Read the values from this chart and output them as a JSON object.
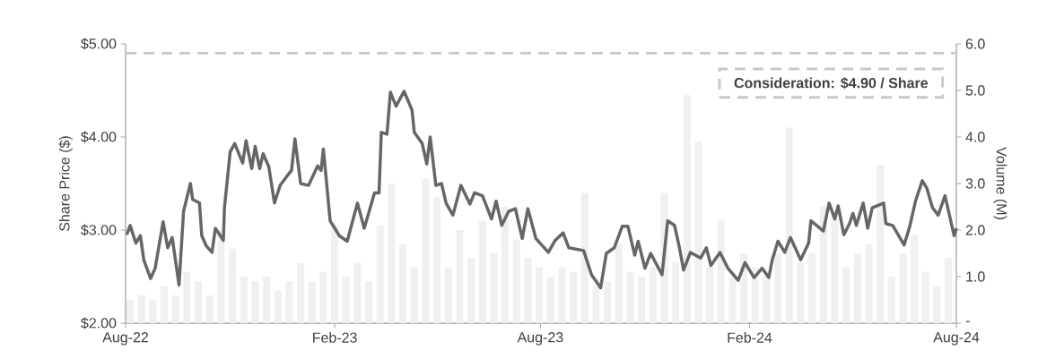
{
  "chart_data": {
    "type": "line",
    "ylabel": "Share Price ($)",
    "y2label": "Volume (M)",
    "xlim": [
      "2022-08-01",
      "2024-08-01"
    ],
    "xticks": [
      {
        "value": "2022-08-01",
        "label": "Aug-22"
      },
      {
        "value": "2023-02-01",
        "label": "Feb-23"
      },
      {
        "value": "2023-08-01",
        "label": "Aug-23"
      },
      {
        "value": "2024-02-01",
        "label": "Feb-24"
      },
      {
        "value": "2024-08-01",
        "label": "Aug-24"
      }
    ],
    "ylim": [
      2,
      5
    ],
    "yticks": [
      {
        "value": 2,
        "label": "$2.00"
      },
      {
        "value": 3,
        "label": "$3.00"
      },
      {
        "value": 4,
        "label": "$4.00"
      },
      {
        "value": 5,
        "label": "$5.00"
      }
    ],
    "y2lim": [
      0,
      6
    ],
    "y2ticks": [
      {
        "value": 0,
        "label": "-"
      },
      {
        "value": 1,
        "label": "1.0"
      },
      {
        "value": 2,
        "label": "2.0"
      },
      {
        "value": 3,
        "label": "3.0"
      },
      {
        "value": 4,
        "label": "4.0"
      },
      {
        "value": 5,
        "label": "5.0"
      },
      {
        "value": 6,
        "label": "6.0"
      }
    ],
    "ref_lines": [
      {
        "axis": "y",
        "value": 4.9,
        "label": "**Consideration: $4.90 / Share**",
        "color": "#c8c8c8",
        "line_style": "dashed"
      }
    ],
    "series": [
      {
        "type": "bar",
        "axis": "y2",
        "color": "#f0f0f0",
        "x": [
          "2022-08-05",
          "2022-08-15",
          "2022-08-25",
          "2022-09-04",
          "2022-09-14",
          "2022-09-24",
          "2022-10-04",
          "2022-10-14",
          "2022-10-24",
          "2022-11-03",
          "2022-11-13",
          "2022-11-23",
          "2022-12-03",
          "2022-12-13",
          "2022-12-23",
          "2023-01-02",
          "2023-01-12",
          "2023-01-22",
          "2023-02-01",
          "2023-02-11",
          "2023-02-21",
          "2023-03-03",
          "2023-03-13",
          "2023-03-23",
          "2023-04-02",
          "2023-04-12",
          "2023-04-22",
          "2023-05-02",
          "2023-05-12",
          "2023-05-22",
          "2023-06-01",
          "2023-06-11",
          "2023-06-21",
          "2023-07-01",
          "2023-07-11",
          "2023-07-21",
          "2023-07-31",
          "2023-08-10",
          "2023-08-20",
          "2023-08-30",
          "2023-09-09",
          "2023-09-19",
          "2023-09-29",
          "2023-10-09",
          "2023-10-19",
          "2023-10-29",
          "2023-11-08",
          "2023-11-18",
          "2023-11-28",
          "2023-12-08",
          "2023-12-18",
          "2023-12-28",
          "2024-01-07",
          "2024-01-17",
          "2024-01-27",
          "2024-02-06",
          "2024-02-16",
          "2024-02-26",
          "2024-03-07",
          "2024-03-17",
          "2024-03-27",
          "2024-04-06",
          "2024-04-16",
          "2024-04-26",
          "2024-05-06",
          "2024-05-16",
          "2024-05-26",
          "2024-06-05",
          "2024-06-15",
          "2024-06-25",
          "2024-07-05",
          "2024-07-15",
          "2024-07-25"
        ],
        "values": [
          0.5,
          0.6,
          0.5,
          0.8,
          0.6,
          1.1,
          0.9,
          0.6,
          2.0,
          1.6,
          1.0,
          0.9,
          1.0,
          0.7,
          0.9,
          1.3,
          0.9,
          1.1,
          2.1,
          1.0,
          1.3,
          0.9,
          2.1,
          3.0,
          1.7,
          1.2,
          3.1,
          2.7,
          1.2,
          2.0,
          1.4,
          2.2,
          1.5,
          2.5,
          1.8,
          1.4,
          1.2,
          1.0,
          1.2,
          1.1,
          2.8,
          0.8,
          0.9,
          1.7,
          1.1,
          1.0,
          1.2,
          2.8,
          1.3,
          4.9,
          3.9,
          1.2,
          2.2,
          1.0,
          1.5,
          1.2,
          1.0,
          1.5,
          4.2,
          1.3,
          1.5,
          2.5,
          2.4,
          1.2,
          1.5,
          1.7,
          3.4,
          1.0,
          1.5,
          1.9,
          1.1,
          0.8,
          1.4
        ]
      },
      {
        "color": "#666666",
        "x": [
          "2022-08-02",
          "2022-08-05",
          "2022-08-10",
          "2022-08-14",
          "2022-08-17",
          "2022-08-23",
          "2022-08-27",
          "2022-09-03",
          "2022-09-07",
          "2022-09-11",
          "2022-09-17",
          "2022-09-21",
          "2022-09-27",
          "2022-09-29",
          "2022-10-05",
          "2022-10-07",
          "2022-10-11",
          "2022-10-16",
          "2022-10-19",
          "2022-10-26",
          "2022-10-27",
          "2022-11-01",
          "2022-11-05",
          "2022-11-12",
          "2022-11-15",
          "2022-11-20",
          "2022-11-23",
          "2022-11-27",
          "2022-11-30",
          "2022-12-05",
          "2022-12-10",
          "2022-12-15",
          "2022-12-21",
          "2022-12-25",
          "2022-12-28",
          "2023-01-02",
          "2023-01-09",
          "2023-01-17",
          "2023-01-20",
          "2023-01-22",
          "2023-01-28",
          "2023-02-05",
          "2023-02-12",
          "2023-02-21",
          "2023-02-27",
          "2023-03-08",
          "2023-03-12",
          "2023-03-14",
          "2023-03-19",
          "2023-03-22",
          "2023-03-27",
          "2023-04-03",
          "2023-04-10",
          "2023-04-12",
          "2023-04-19",
          "2023-04-23",
          "2023-04-26",
          "2023-05-01",
          "2023-05-06",
          "2023-05-10",
          "2023-05-16",
          "2023-05-23",
          "2023-05-31",
          "2023-06-04",
          "2023-06-11",
          "2023-06-19",
          "2023-06-23",
          "2023-06-28",
          "2023-07-04",
          "2023-07-10",
          "2023-07-16",
          "2023-07-21",
          "2023-07-28",
          "2023-08-08",
          "2023-08-14",
          "2023-08-21",
          "2023-08-26",
          "2023-09-08",
          "2023-09-15",
          "2023-09-23",
          "2023-09-28",
          "2023-10-05",
          "2023-10-12",
          "2023-10-17",
          "2023-10-23",
          "2023-10-26",
          "2023-11-01",
          "2023-11-06",
          "2023-11-16",
          "2023-11-21",
          "2023-11-27",
          "2023-12-01",
          "2023-12-05",
          "2023-12-11",
          "2023-12-20",
          "2023-12-25",
          "2023-12-29",
          "2024-01-06",
          "2024-01-13",
          "2024-01-22",
          "2024-01-28",
          "2024-02-05",
          "2024-02-12",
          "2024-02-18",
          "2024-02-21",
          "2024-02-26",
          "2024-03-03",
          "2024-03-08",
          "2024-03-17",
          "2024-03-24",
          "2024-03-26",
          "2024-04-06",
          "2024-04-11",
          "2024-04-16",
          "2024-04-19",
          "2024-04-24",
          "2024-04-29",
          "2024-05-02",
          "2024-05-05",
          "2024-05-11",
          "2024-05-15",
          "2024-05-19",
          "2024-05-29",
          "2024-05-31",
          "2024-06-06",
          "2024-06-16",
          "2024-06-21",
          "2024-06-26",
          "2024-07-02",
          "2024-07-06",
          "2024-07-11",
          "2024-07-16",
          "2024-07-22",
          "2024-07-30",
          "2024-08-01"
        ],
        "values": [
          2.95,
          3.05,
          2.86,
          2.94,
          2.68,
          2.48,
          2.59,
          3.09,
          2.81,
          2.92,
          2.41,
          3.2,
          3.5,
          3.33,
          3.29,
          2.94,
          2.83,
          2.76,
          3.02,
          2.89,
          3.24,
          3.84,
          3.93,
          3.72,
          3.96,
          3.66,
          3.9,
          3.66,
          3.82,
          3.68,
          3.29,
          3.48,
          3.58,
          3.64,
          3.98,
          3.5,
          3.48,
          3.69,
          3.64,
          3.87,
          3.1,
          2.94,
          2.88,
          3.29,
          3.02,
          3.4,
          3.4,
          4.05,
          4.03,
          4.48,
          4.33,
          4.49,
          4.29,
          4.05,
          3.93,
          3.71,
          4.0,
          3.48,
          3.5,
          3.29,
          3.16,
          3.48,
          3.28,
          3.4,
          3.37,
          3.12,
          3.31,
          3.05,
          3.2,
          3.23,
          2.91,
          3.23,
          2.91,
          2.76,
          2.89,
          2.97,
          2.81,
          2.78,
          2.52,
          2.38,
          2.75,
          2.81,
          3.04,
          3.04,
          2.73,
          2.88,
          2.59,
          2.75,
          2.52,
          3.1,
          3.05,
          2.83,
          2.57,
          2.76,
          2.7,
          2.81,
          2.62,
          2.76,
          2.59,
          2.46,
          2.65,
          2.49,
          2.59,
          2.49,
          2.68,
          2.88,
          2.76,
          2.92,
          2.68,
          2.86,
          3.1,
          2.99,
          3.29,
          3.12,
          3.26,
          2.95,
          3.07,
          3.18,
          3.05,
          3.29,
          3.02,
          3.24,
          3.29,
          3.07,
          3.05,
          2.84,
          3.04,
          3.31,
          3.53,
          3.45,
          3.24,
          3.16,
          3.37,
          2.94,
          3.02
        ]
      }
    ]
  }
}
